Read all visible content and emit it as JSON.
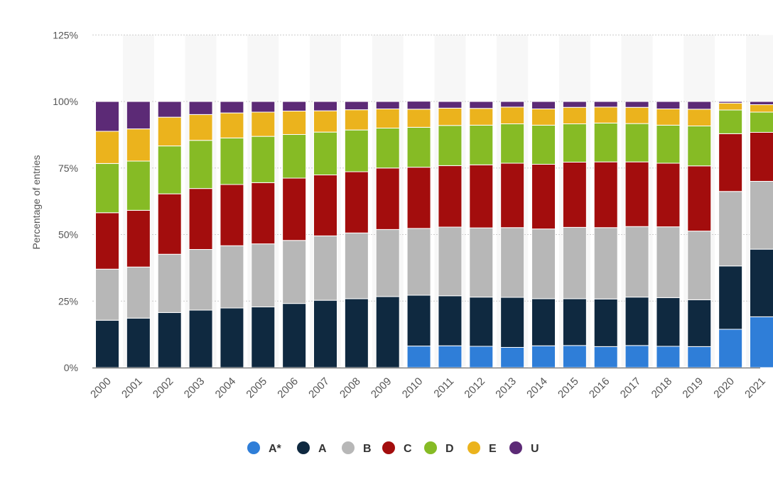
{
  "chart_data": {
    "type": "bar",
    "stacked": true,
    "ylabel": "Percentage of entries",
    "ylim": [
      0,
      125
    ],
    "yticks": [
      "0%",
      "25%",
      "50%",
      "75%",
      "100%",
      "125%"
    ],
    "grid": true,
    "legend_position": "bottom",
    "categories": [
      "2000",
      "2001",
      "2002",
      "2003",
      "2004",
      "2005",
      "2006",
      "2007",
      "2008",
      "2009",
      "2010",
      "2011",
      "2012",
      "2013",
      "2014",
      "2015",
      "2016",
      "2017",
      "2018",
      "2019",
      "2020",
      "2021"
    ],
    "series": [
      {
        "name": "A*",
        "color": "#2f7ed8",
        "values": [
          0,
          0,
          0,
          0,
          0,
          0,
          0,
          0,
          0,
          0,
          8.1,
          8.2,
          8.0,
          7.6,
          8.2,
          8.3,
          7.9,
          8.3,
          8.0,
          7.9,
          14.4,
          19.1
        ]
      },
      {
        "name": "A",
        "color": "#0f2940",
        "values": [
          17.8,
          18.6,
          20.7,
          21.6,
          22.4,
          22.8,
          24.1,
          25.3,
          25.9,
          26.7,
          19.1,
          18.8,
          18.5,
          18.8,
          17.7,
          17.6,
          17.9,
          18.2,
          18.3,
          17.6,
          23.8,
          25.4
        ]
      },
      {
        "name": "B",
        "color": "#b7b7b7",
        "values": [
          19.2,
          19.2,
          21.9,
          22.8,
          23.4,
          23.7,
          23.7,
          24.2,
          24.7,
          25.2,
          25.1,
          25.8,
          26.0,
          26.2,
          26.2,
          26.8,
          26.8,
          26.5,
          26.6,
          25.8,
          28.0,
          25.5
        ]
      },
      {
        "name": "C",
        "color": "#a30d0d",
        "values": [
          21.2,
          21.3,
          22.7,
          22.9,
          23.0,
          23.0,
          23.4,
          22.9,
          23.0,
          23.1,
          23.0,
          23.1,
          23.7,
          24.2,
          24.3,
          24.5,
          24.7,
          24.3,
          23.9,
          24.5,
          21.7,
          18.4
        ]
      },
      {
        "name": "D",
        "color": "#86bb25",
        "values": [
          18.5,
          18.5,
          18.0,
          18.1,
          17.5,
          17.4,
          16.4,
          16.1,
          15.7,
          15.0,
          15.0,
          15.1,
          14.9,
          14.8,
          14.7,
          14.4,
          14.6,
          14.4,
          14.3,
          15.0,
          8.9,
          7.6
        ]
      },
      {
        "name": "E",
        "color": "#ebb31d",
        "values": [
          12.1,
          12.1,
          10.8,
          9.7,
          9.4,
          9.1,
          8.8,
          8.0,
          7.6,
          7.2,
          6.8,
          6.5,
          6.3,
          6.3,
          6.1,
          6.2,
          6.0,
          6.1,
          6.1,
          6.3,
          2.6,
          2.8
        ]
      },
      {
        "name": "U",
        "color": "#5c2a76",
        "values": [
          11.2,
          10.3,
          5.9,
          4.9,
          4.3,
          4.0,
          3.6,
          3.5,
          3.1,
          2.8,
          3.0,
          2.5,
          2.6,
          2.1,
          2.8,
          2.2,
          2.1,
          2.2,
          2.8,
          2.9,
          0.6,
          1.2
        ]
      }
    ]
  }
}
